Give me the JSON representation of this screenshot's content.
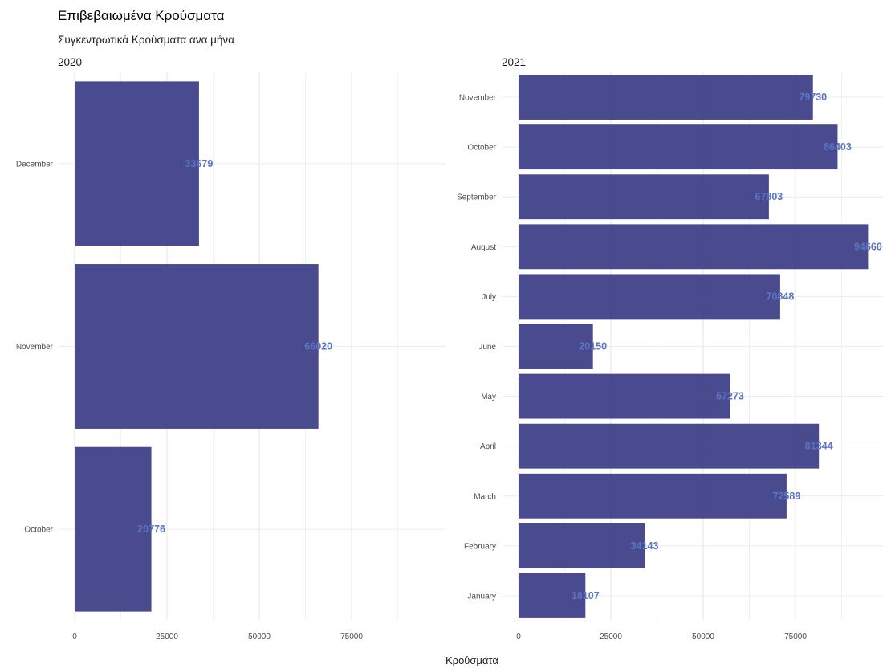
{
  "title": "Επιβεβαιωμένα Κρούσματα",
  "subtitle": "Συγκεντρωτικά Κρούσματα ανα μήνα",
  "chart_data": {
    "type": "bar",
    "orientation": "horizontal",
    "xlabel": "Κρούσματα",
    "ylabel": "",
    "xlim": [
      0,
      95000
    ],
    "x_ticks": [
      0,
      25000,
      50000,
      75000
    ],
    "grid": true,
    "bar_color": "#3b3b85",
    "label_color": "#5b74c4",
    "facets": [
      {
        "panel": "2020",
        "categories": [
          "October",
          "November",
          "December"
        ],
        "values": [
          20776,
          66020,
          33679
        ]
      },
      {
        "panel": "2021",
        "categories": [
          "January",
          "February",
          "March",
          "April",
          "May",
          "June",
          "July",
          "August",
          "September",
          "October",
          "November"
        ],
        "values": [
          18107,
          34143,
          72589,
          81344,
          57273,
          20150,
          70848,
          94660,
          67803,
          86403,
          79730
        ]
      }
    ]
  }
}
